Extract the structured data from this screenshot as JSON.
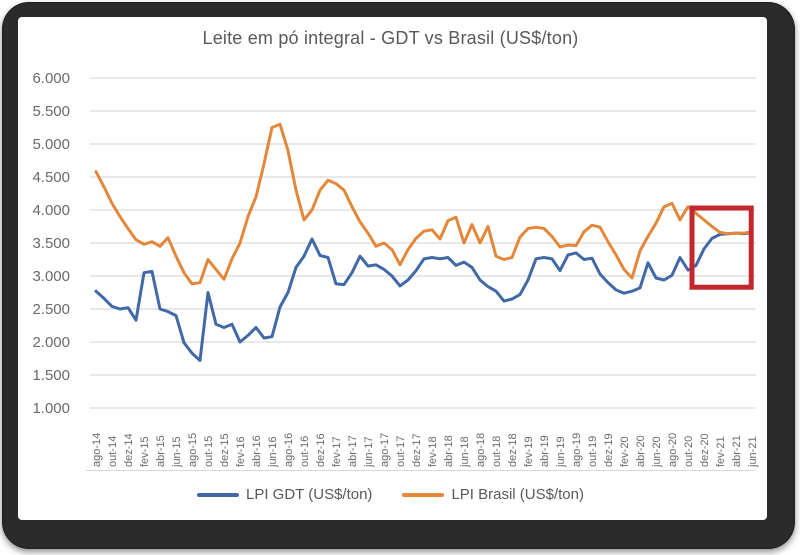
{
  "window": {
    "frame_color": "#2b2b2b",
    "panel_background": "#ffffff"
  },
  "chart_data": {
    "type": "line",
    "title": "Leite em pó integral - GDT vs Brasil (US$/ton)",
    "grid": true,
    "legend_position": "bottom",
    "ylim": [
      1000,
      6000
    ],
    "y_ticks": [
      1000,
      1500,
      2000,
      2500,
      3000,
      3500,
      4000,
      4500,
      5000,
      5500,
      6000
    ],
    "y_tick_labels": [
      "1.000",
      "1.500",
      "2.000",
      "2.500",
      "3.000",
      "3.500",
      "4.000",
      "4.500",
      "5.000",
      "5.500",
      "6.000"
    ],
    "x_tick_every": 2,
    "x": [
      "ago-14",
      "set-14",
      "out-14",
      "nov-14",
      "dez-14",
      "jan-15",
      "fev-15",
      "mar-15",
      "abr-15",
      "mai-15",
      "jun-15",
      "jul-15",
      "ago-15",
      "set-15",
      "out-15",
      "nov-15",
      "dez-15",
      "jan-16",
      "fev-16",
      "mar-16",
      "abr-16",
      "mai-16",
      "jun-16",
      "jul-16",
      "ago-16",
      "set-16",
      "out-16",
      "nov-16",
      "dez-16",
      "jan-17",
      "fev-17",
      "mar-17",
      "abr-17",
      "mai-17",
      "jun-17",
      "jul-17",
      "ago-17",
      "set-17",
      "out-17",
      "nov-17",
      "dez-17",
      "jan-18",
      "fev-18",
      "mar-18",
      "abr-18",
      "mai-18",
      "jun-18",
      "jul-18",
      "ago-18",
      "set-18",
      "out-18",
      "nov-18",
      "dez-18",
      "jan-19",
      "fev-19",
      "mar-19",
      "abr-19",
      "mai-19",
      "jun-19",
      "jul-19",
      "ago-19",
      "set-19",
      "out-19",
      "nov-19",
      "dez-19",
      "jan-20",
      "fev-20",
      "mar-20",
      "abr-20",
      "mai-20",
      "jun-20",
      "jul-20",
      "ago-20",
      "set-20",
      "out-20",
      "nov-20",
      "dez-20",
      "jan-21",
      "fev-21",
      "mar-21",
      "abr-21",
      "mai-21",
      "jun-21"
    ],
    "x_tick_labels": [
      "ago-14",
      "out-14",
      "dez-14",
      "fev-15",
      "abr-15",
      "jun-15",
      "ago-15",
      "out-15",
      "dez-15",
      "fev-16",
      "abr-16",
      "jun-16",
      "ago-16",
      "out-16",
      "dez-16",
      "fev-17",
      "abr-17",
      "jun-17",
      "ago-17",
      "out-17",
      "dez-17",
      "fev-18",
      "abr-18",
      "jun-18",
      "ago-18",
      "out-18",
      "dez-18",
      "fev-19",
      "abr-19",
      "jun-19",
      "ago-19",
      "out-19",
      "dez-19",
      "fev-20",
      "abr-20",
      "jun-20",
      "ago-20",
      "out-20",
      "dez-20",
      "fev-21",
      "abr-21",
      "jun-21"
    ],
    "series": [
      {
        "name": "LPI GDT (US$/ton)",
        "color": "#4169a8",
        "values": [
          2770,
          2660,
          2540,
          2500,
          2520,
          2330,
          3050,
          3070,
          2500,
          2460,
          2400,
          1990,
          1830,
          1720,
          2750,
          2270,
          2220,
          2270,
          2000,
          2100,
          2220,
          2060,
          2080,
          2530,
          2750,
          3130,
          3300,
          3560,
          3310,
          3280,
          2880,
          2870,
          3050,
          3300,
          3150,
          3170,
          3100,
          3000,
          2850,
          2940,
          3080,
          3260,
          3280,
          3260,
          3280,
          3160,
          3210,
          3130,
          2940,
          2840,
          2770,
          2620,
          2650,
          2720,
          2940,
          3260,
          3280,
          3260,
          3080,
          3320,
          3350,
          3250,
          3270,
          3030,
          2900,
          2790,
          2740,
          2770,
          2820,
          3200,
          2970,
          2940,
          3010,
          3280,
          3090,
          3160,
          3410,
          3570,
          3630,
          3640,
          3650,
          3640,
          3660
        ]
      },
      {
        "name": "LPI Brasil (US$/ton)",
        "color": "#e3873a",
        "values": [
          4580,
          4350,
          4100,
          3900,
          3720,
          3550,
          3480,
          3520,
          3450,
          3580,
          3300,
          3050,
          2880,
          2900,
          3250,
          3100,
          2950,
          3260,
          3500,
          3900,
          4200,
          4700,
          5250,
          5300,
          4900,
          4300,
          3850,
          4000,
          4300,
          4450,
          4400,
          4300,
          4050,
          3820,
          3650,
          3450,
          3500,
          3400,
          3170,
          3400,
          3570,
          3680,
          3700,
          3560,
          3840,
          3890,
          3500,
          3780,
          3500,
          3750,
          3300,
          3250,
          3280,
          3590,
          3720,
          3740,
          3720,
          3600,
          3440,
          3470,
          3460,
          3670,
          3770,
          3740,
          3520,
          3320,
          3100,
          2970,
          3380,
          3600,
          3800,
          4050,
          4100,
          3850,
          4050,
          3950,
          3850,
          3750,
          3660,
          3640,
          3650,
          3650,
          3670
        ]
      }
    ],
    "annotation_box": {
      "color": "#c1272d",
      "x_from_index": 74.5,
      "x_to_index": 81.9,
      "value_from": 2830,
      "value_to": 4030
    },
    "colors": {
      "gridline": "#d9d9d9",
      "axis_text": "#6a6a6a",
      "title_text": "#595959"
    }
  }
}
